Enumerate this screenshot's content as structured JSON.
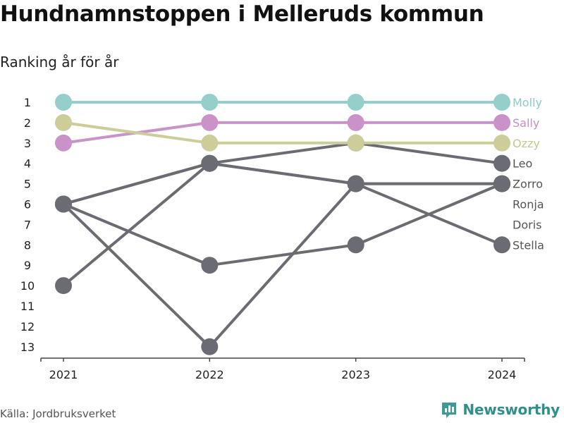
{
  "title": "Hundnamnstoppen i Melleruds kommun",
  "subtitle": "Ranking år för år",
  "source": "Källa: Jordbruksverket",
  "brand": "Newsworthy",
  "chart_data": {
    "type": "line",
    "x": [
      "2021",
      "2022",
      "2023",
      "2024"
    ],
    "ylim": [
      1,
      13
    ],
    "y_reversed": true,
    "y_ticks": [
      1,
      2,
      3,
      4,
      5,
      6,
      7,
      8,
      9,
      10,
      11,
      12,
      13
    ],
    "grid": false,
    "legend": "right, inline labels",
    "series": [
      {
        "name": "Molly",
        "values": [
          1,
          1,
          1,
          1
        ],
        "color": "#95cfcc",
        "label_color": "#8ccac7"
      },
      {
        "name": "Sally",
        "values": [
          3,
          2,
          2,
          2
        ],
        "color": "#c993c9",
        "label_color": "#c58fc5"
      },
      {
        "name": "Ozzy",
        "values": [
          2,
          3,
          3,
          3
        ],
        "color": "#cdcd9a",
        "label_color": "#c6c68e"
      },
      {
        "name": "Leo",
        "values": [
          10,
          4,
          3,
          4
        ],
        "color": "#6b6b73",
        "label_color": "#555555"
      },
      {
        "name": "Zorro",
        "values": [
          6,
          4,
          5,
          5
        ],
        "color": "#6b6b73",
        "label_color": "#555555"
      },
      {
        "name": "Ronja",
        "values": [
          6,
          9,
          8,
          5
        ],
        "color": "#6b6b73",
        "label_color": "#555555"
      },
      {
        "name": "Doris",
        "values": [
          6,
          13,
          5,
          5
        ],
        "color": "#6b6b73",
        "label_color": "#555555"
      },
      {
        "name": "Stella",
        "values": [
          6,
          4,
          5,
          8
        ],
        "color": "#6b6b73",
        "label_color": "#555555"
      }
    ]
  }
}
